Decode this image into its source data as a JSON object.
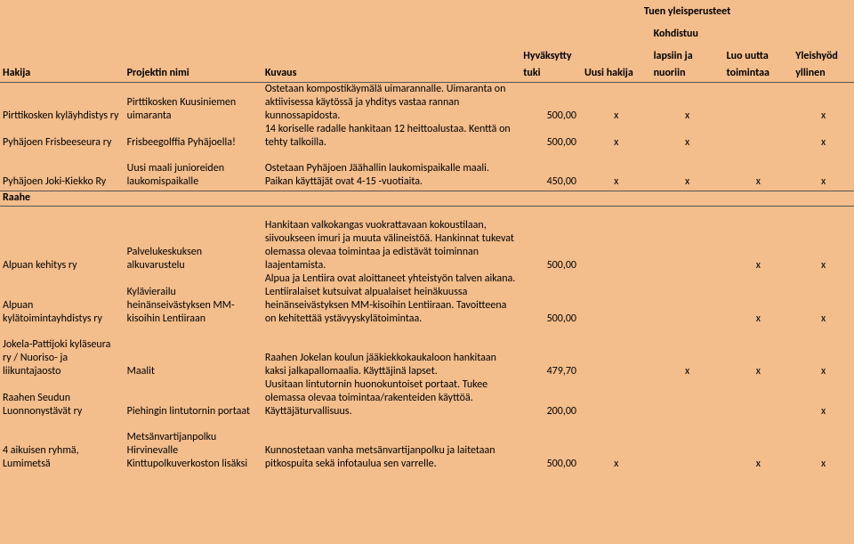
{
  "colors": {
    "background": "#f3bd8c",
    "line": "#555555",
    "text": "#000000"
  },
  "columns": {
    "hakija_w": 126,
    "projekti_w": 140,
    "kuvaus_w": 262,
    "tuki_w": 62,
    "uusi_w": 70,
    "lapset_w": 74,
    "uutta_w": 70,
    "yleis_w": 62
  },
  "super_header": {
    "row1_col5": "Tuen yleisperusteet",
    "row2_col5": "Kohdistuu",
    "row3_col3": "Hyväksytty",
    "row3_col5": "lapsiin ja",
    "row3_col6": "Luo uutta",
    "row3_col7": "Yleishyöd"
  },
  "header": {
    "hakija": "Hakija",
    "projekti": "Projektin nimi",
    "kuvaus": "Kuvaus",
    "tuki": "tuki",
    "uusi": "Uusi hakija",
    "lapset": "nuoriin",
    "uutta": "toimintaa",
    "yleis": "yllinen"
  },
  "rows": [
    {
      "hakija": "Pirttikosken kyläyhdistys ry",
      "projekti": "Pirttikosken Kuusiniemen uimaranta",
      "kuvaus": "Ostetaan kompostikäymälä uimarannalle. Uimaranta on aktiivisessa käytössä ja yhditys vastaa rannan kunnossapidosta.",
      "tuki": "500,00",
      "uusi": "x",
      "lapset": "x",
      "uutta": "",
      "yleis": "x"
    },
    {
      "hakija": "Pyhäjoen Frisbeeseura ry",
      "projekti": "Frisbeegolffia Pyhäjoella!",
      "kuvaus": "14 koriselle radalle hankitaan 12 heittoalustaa. Kenttä on tehty talkoilla.",
      "tuki": "500,00",
      "uusi": "x",
      "lapset": "x",
      "uutta": "",
      "yleis": "x"
    }
  ],
  "row_joki": {
    "hakija": "Pyhäjoen Joki-Kiekko Ry",
    "projekti": "Uusi maali junioreiden laukomispaikalle",
    "kuvaus": "Ostetaan Pyhäjoen Jäähallin laukomispaikalle maali. Paikan käyttäjät ovat 4-15 -vuotiaita.",
    "tuki": "450,00",
    "uusi": "x",
    "lapset": "x",
    "uutta": "x",
    "yleis": "x"
  },
  "section2_label": "Raahe",
  "rows2": [
    {
      "hakija": "Alpuan kehitys ry",
      "projekti": "Palvelukeskuksen alkuvarustelu",
      "kuvaus": "Hankitaan valkokangas vuokrattavaan kokoustilaan, siivoukseen imuri ja muuta välineistöä. Hankinnat tukevat olemassa olevaa toimintaa ja edistävät toiminnan laajentamista.",
      "tuki": "500,00",
      "uusi": "",
      "lapset": "",
      "uutta": "x",
      "yleis": "x"
    },
    {
      "hakija": "Alpuan kylätoimintayhdistys ry",
      "projekti": "Kylävierailu heinänseivästyksen MM-kisoihin Lentiiraan",
      "kuvaus": "Alpua ja Lentiira ovat aloittaneet yhteistyön talven aikana. Lentiiralaiset kutsuivat alpualaiset heinäkuussa heinänseivästyksen MM-kisoihin Lentiiraan. Tavoitteena on kehitettää ystävyyskylätoimintaa.",
      "tuki": "500,00",
      "uusi": "",
      "lapset": "",
      "uutta": "x",
      "yleis": "x"
    }
  ],
  "rows3": [
    {
      "hakija": "Jokela-Pattijoki kyläseura ry / Nuoriso- ja liikuntajaosto",
      "projekti": "Maalit",
      "kuvaus": "Raahen Jokelan koulun jääkiekkokaukaloon hankitaan kaksi jalkapallomaalia. Käyttäjinä lapset.",
      "tuki": "479,70",
      "uusi": "",
      "lapset": "x",
      "uutta": "x",
      "yleis": "x"
    },
    {
      "hakija": "Raahen Seudun Luonnonystävät ry",
      "projekti": "Piehingin lintutornin portaat",
      "kuvaus": "Uusitaan lintutornin huonokuntoiset portaat. Tukee olemassa olevaa toimintaa/rakenteiden käyttöä. Käyttäjäturvallisuus.",
      "tuki": "200,00",
      "uusi": "",
      "lapset": "",
      "uutta": "",
      "yleis": "x"
    }
  ],
  "row_last": {
    "hakija": "4 aikuisen ryhmä, Lumimetsä",
    "projekti": "Metsänvartijanpolku Hirvinevalle Kinttupolkuverkoston lisäksi",
    "kuvaus": "Kunnostetaan vanha metsänvartijanpolku ja laitetaan pitkospuita sekä infotaulua sen varrelle.",
    "tuki": "500,00",
    "uusi": "x",
    "lapset": "",
    "uutta": "x",
    "yleis": "x"
  }
}
